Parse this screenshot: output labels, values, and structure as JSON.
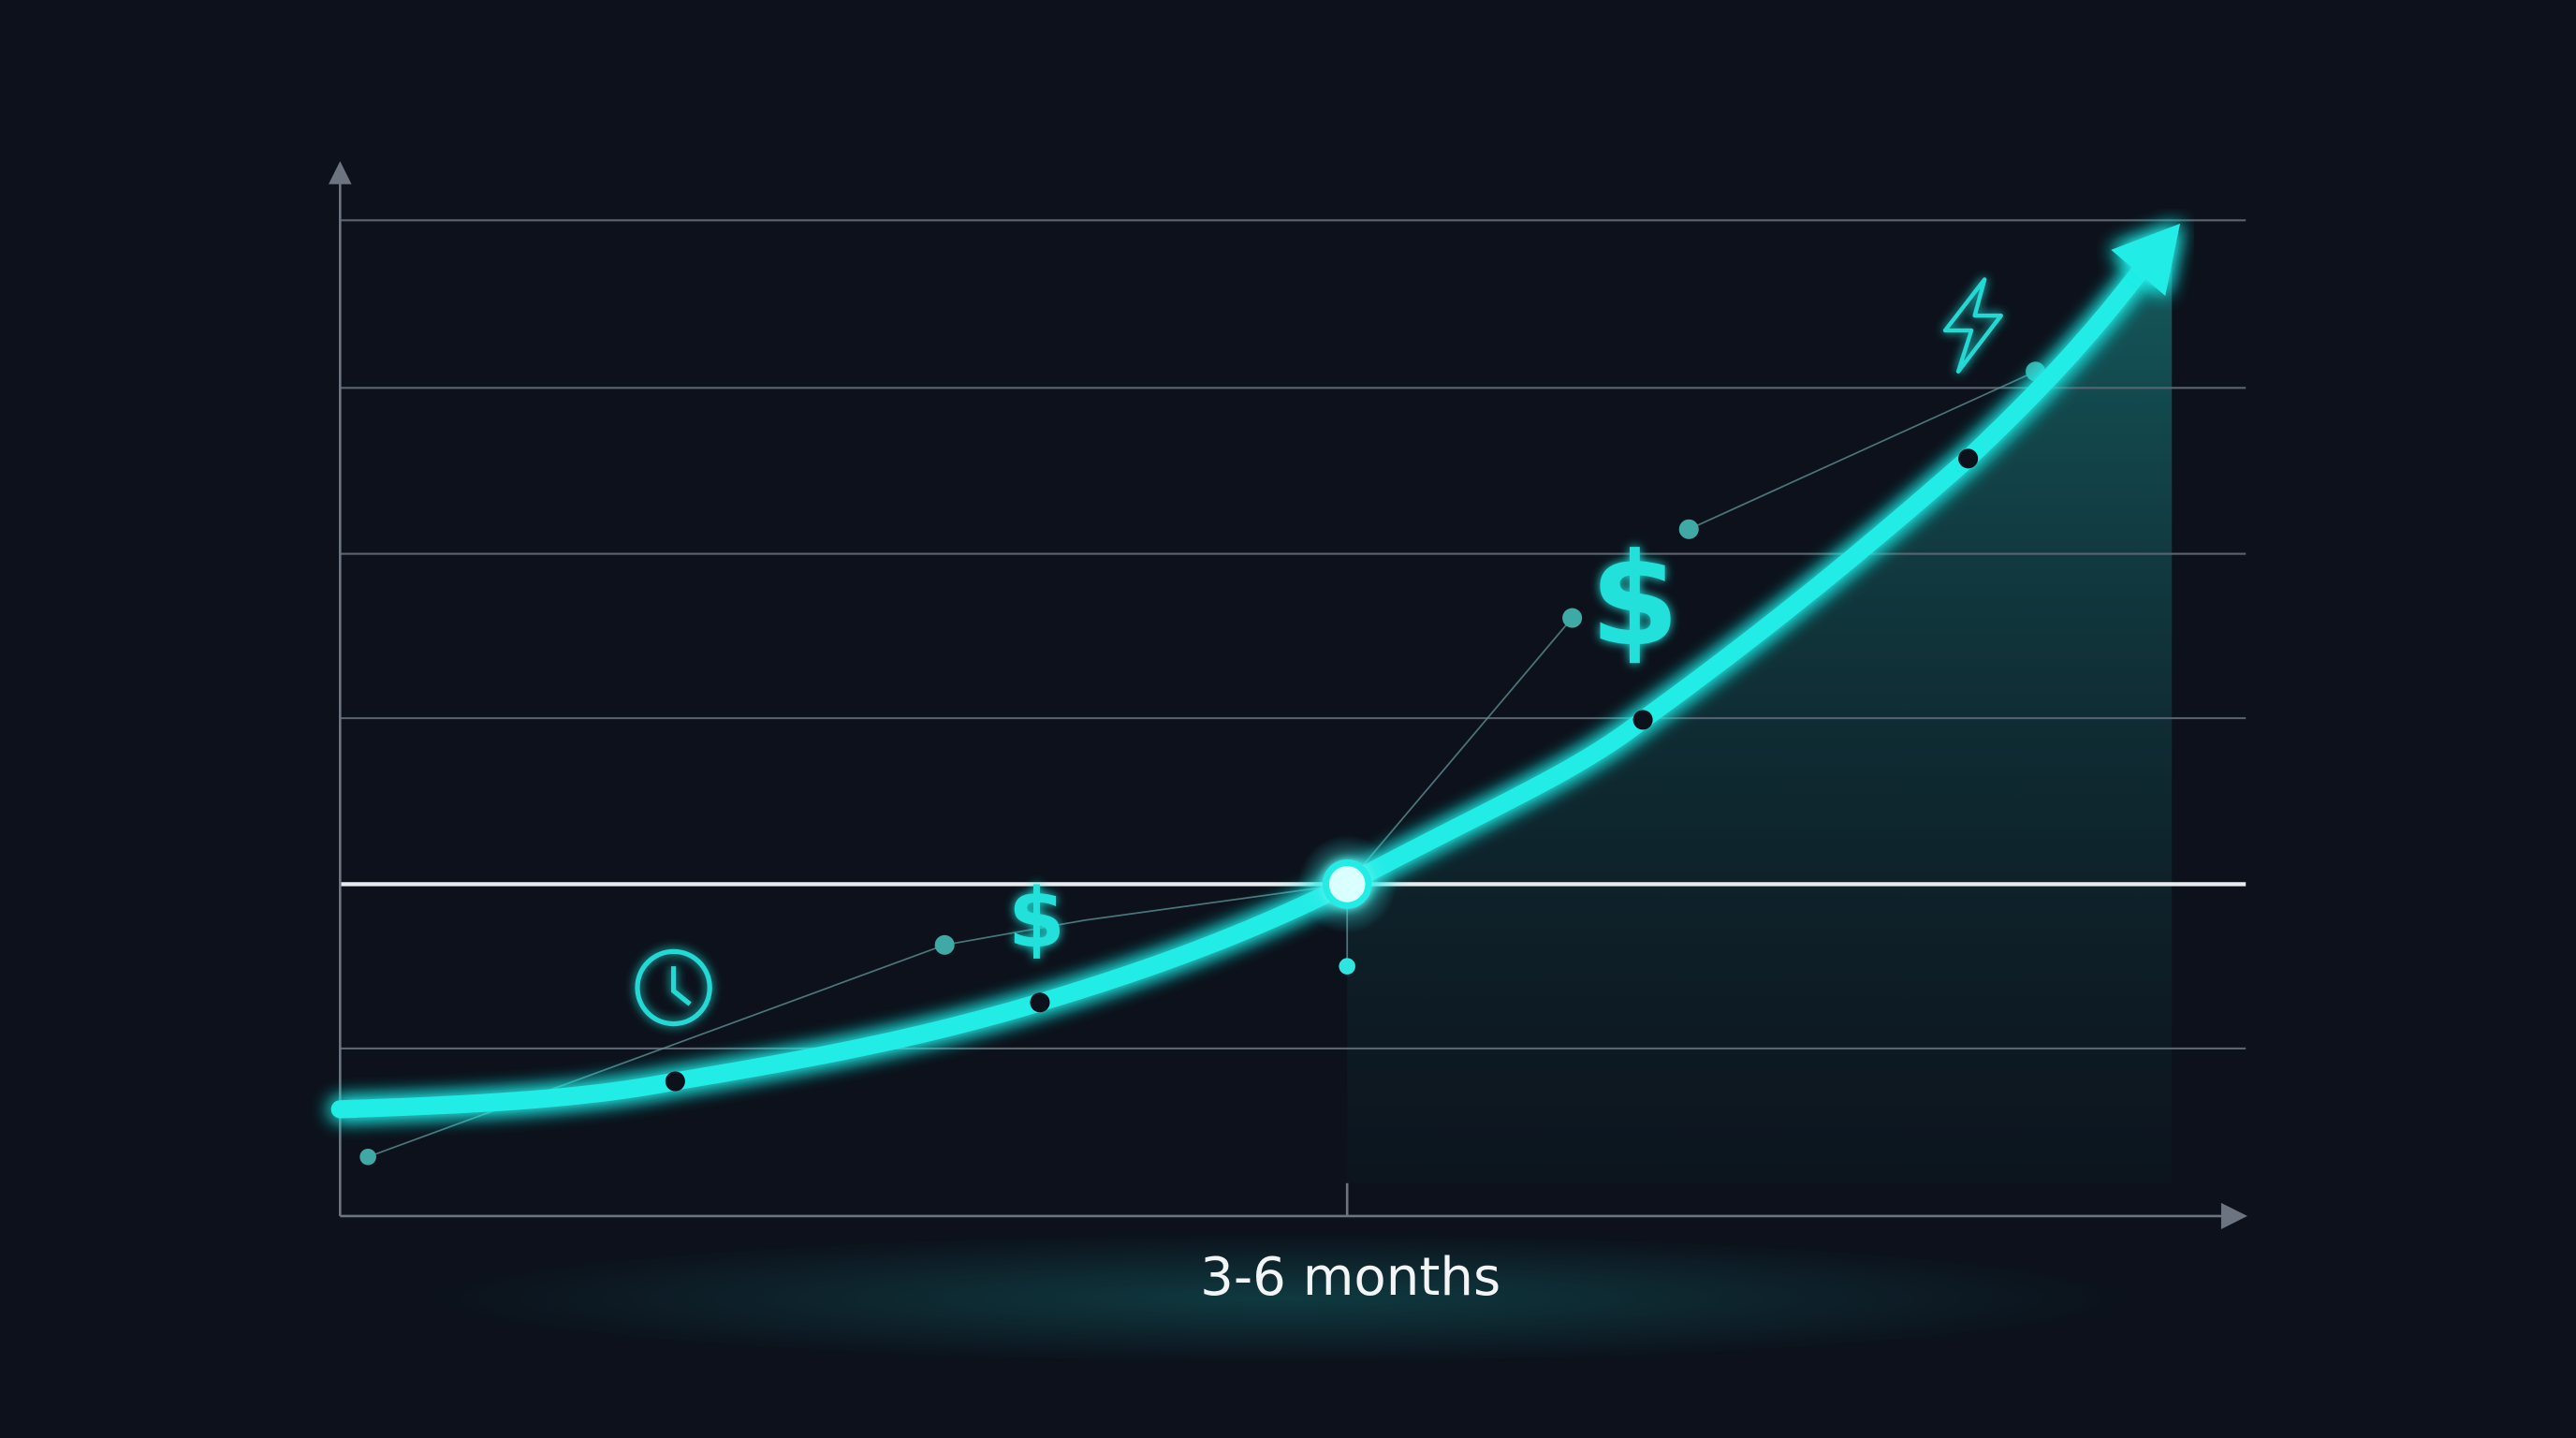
{
  "x_axis_label": "3-6 months",
  "annotations": [
    "$",
    "$"
  ]
}
